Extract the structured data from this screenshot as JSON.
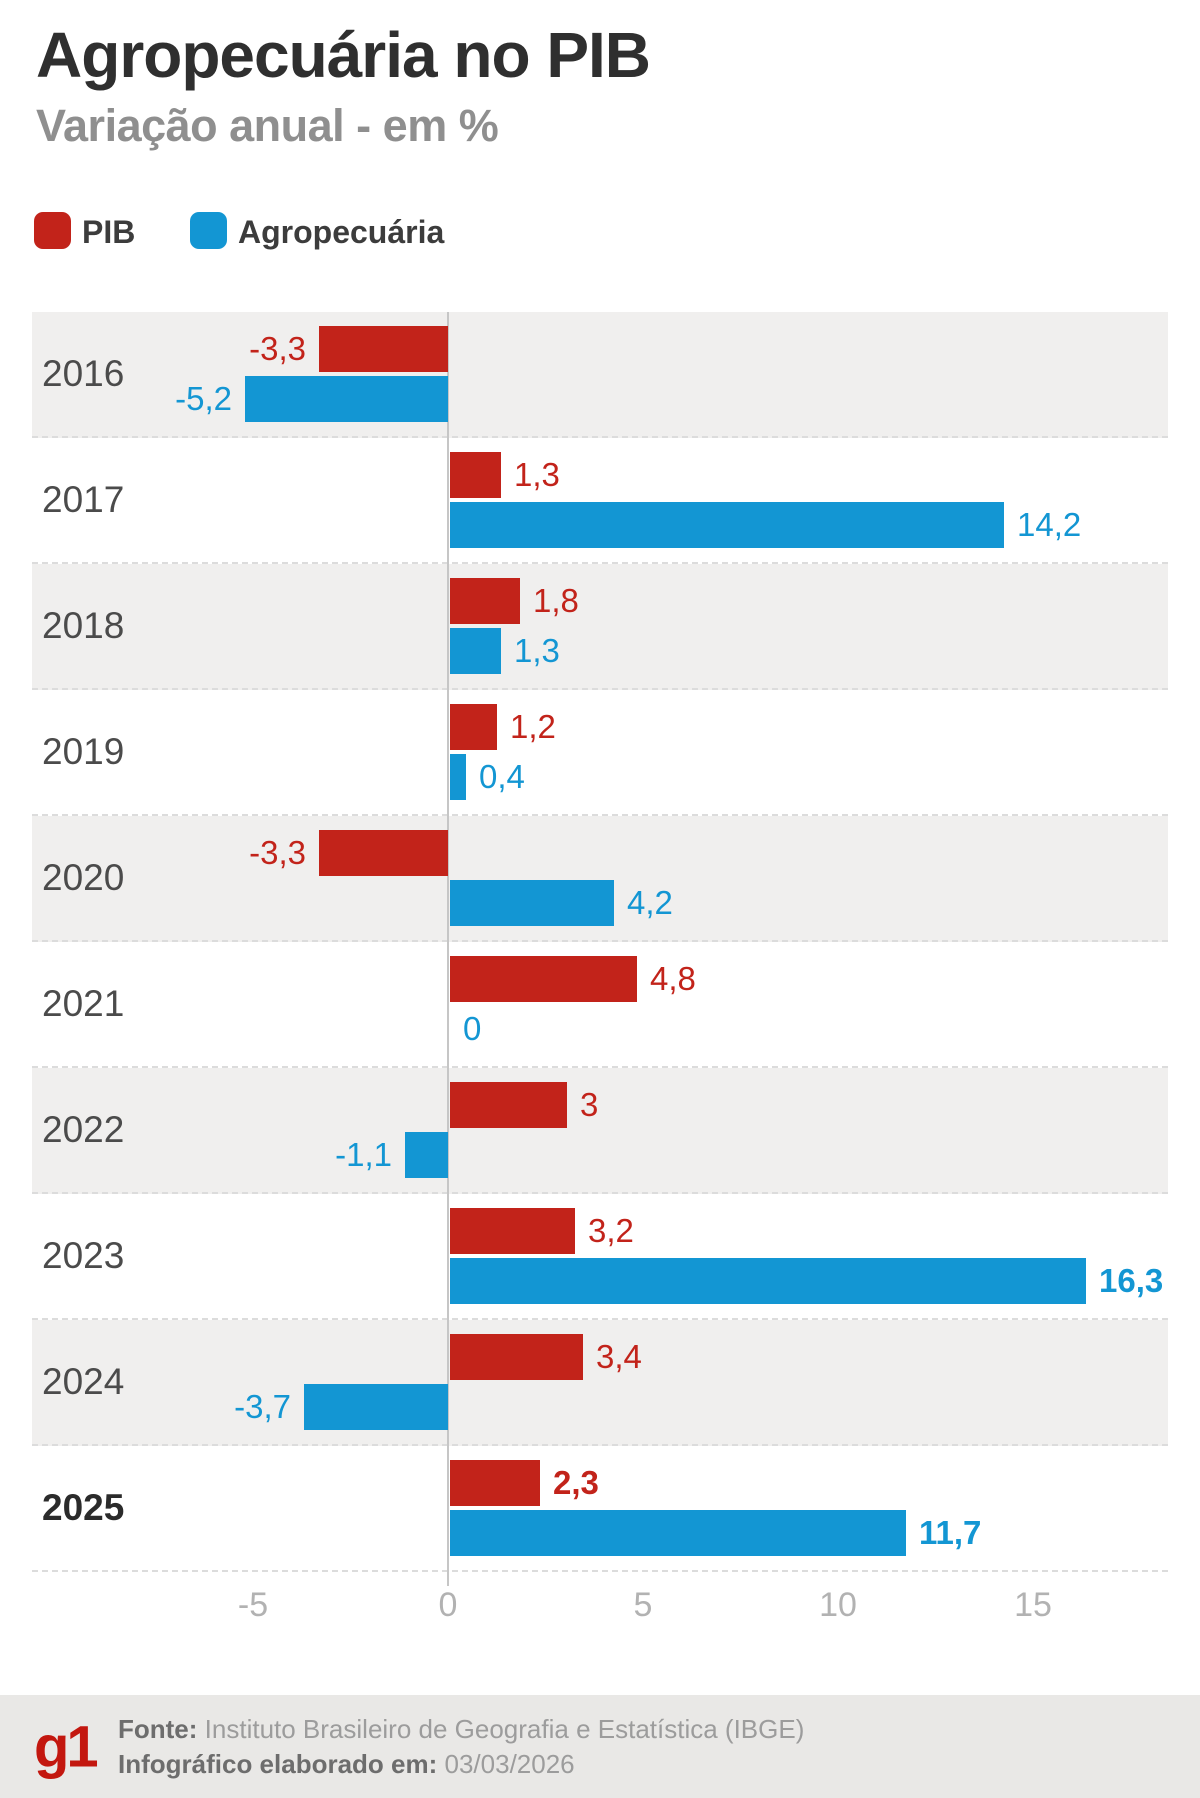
{
  "header": {
    "title": "Agropecuária no PIB",
    "subtitle": "Variação anual - em %"
  },
  "legend": {
    "pib_label": "PIB",
    "agro_label": "Agropecuária"
  },
  "colors": {
    "pib": "#c2231a",
    "agro": "#1396d3",
    "row_stripe": "#f0efee",
    "zero_line": "#c6c6c6",
    "footer_bg": "#e9e8e6",
    "logo_red": "#c3170f"
  },
  "chart_data": {
    "type": "bar",
    "orientation": "horizontal",
    "unit": "%",
    "title": "Agropecuária no PIB",
    "subtitle": "Variação anual - em %",
    "categories": [
      "2016",
      "2017",
      "2018",
      "2019",
      "2020",
      "2021",
      "2022",
      "2023",
      "2024",
      "2025"
    ],
    "series": [
      {
        "name": "PIB",
        "values": [
          -3.3,
          1.3,
          1.8,
          1.2,
          -3.3,
          4.8,
          3,
          3.2,
          3.4,
          2.3
        ]
      },
      {
        "name": "Agropecuária",
        "values": [
          -5.2,
          14.2,
          1.3,
          0.4,
          4.2,
          0,
          -1.1,
          16.3,
          -3.7,
          11.7
        ]
      }
    ],
    "rows": [
      {
        "year": "2016",
        "pib": -3.3,
        "pib_label": "-3,3",
        "agro": -5.2,
        "agro_label": "-5,2",
        "year_bold": false,
        "pib_bold": false,
        "agro_bold": false
      },
      {
        "year": "2017",
        "pib": 1.3,
        "pib_label": "1,3",
        "agro": 14.2,
        "agro_label": "14,2",
        "year_bold": false,
        "pib_bold": false,
        "agro_bold": false
      },
      {
        "year": "2018",
        "pib": 1.8,
        "pib_label": "1,8",
        "agro": 1.3,
        "agro_label": "1,3",
        "year_bold": false,
        "pib_bold": false,
        "agro_bold": false
      },
      {
        "year": "2019",
        "pib": 1.2,
        "pib_label": "1,2",
        "agro": 0.4,
        "agro_label": "0,4",
        "year_bold": false,
        "pib_bold": false,
        "agro_bold": false
      },
      {
        "year": "2020",
        "pib": -3.3,
        "pib_label": "-3,3",
        "agro": 4.2,
        "agro_label": "4,2",
        "year_bold": false,
        "pib_bold": false,
        "agro_bold": false
      },
      {
        "year": "2021",
        "pib": 4.8,
        "pib_label": "4,8",
        "agro": 0,
        "agro_label": "0",
        "year_bold": false,
        "pib_bold": false,
        "agro_bold": false
      },
      {
        "year": "2022",
        "pib": 3,
        "pib_label": "3",
        "agro": -1.1,
        "agro_label": "-1,1",
        "year_bold": false,
        "pib_bold": false,
        "agro_bold": false
      },
      {
        "year": "2023",
        "pib": 3.2,
        "pib_label": "3,2",
        "agro": 16.3,
        "agro_label": "16,3",
        "year_bold": false,
        "pib_bold": false,
        "agro_bold": true
      },
      {
        "year": "2024",
        "pib": 3.4,
        "pib_label": "3,4",
        "agro": -3.7,
        "agro_label": "-3,7",
        "year_bold": false,
        "pib_bold": false,
        "agro_bold": false
      },
      {
        "year": "2025",
        "pib": 2.3,
        "pib_label": "2,3",
        "agro": 11.7,
        "agro_label": "11,7",
        "year_bold": true,
        "pib_bold": true,
        "agro_bold": true
      }
    ],
    "x_axis": {
      "tick_labels": [
        "-5",
        "0",
        "5",
        "10",
        "15"
      ],
      "ticks": [
        -5,
        0,
        5,
        10,
        15
      ],
      "range": [
        -5.5,
        18.4
      ],
      "grid": false
    },
    "legend_position": "top"
  },
  "footer": {
    "logo": "g1",
    "source_label": "Fonte:",
    "source": "Instituto Brasileiro de Geografia e Estatística (IBGE)",
    "elaborated_label": "Infográfico elaborado em:",
    "elaborated_date": "03/03/2026"
  }
}
